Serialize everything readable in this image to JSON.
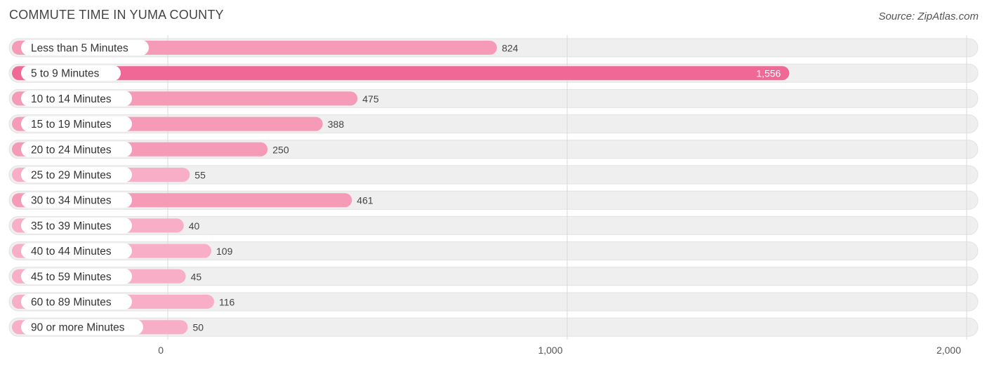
{
  "title": "COMMUTE TIME IN YUMA COUNTY",
  "source": "Source: ZipAtlas.com",
  "colors": {
    "highlight": "#f06895",
    "normal": "#f59bb8",
    "light": "#f7aec6",
    "track": "#efefef",
    "label_bg": "#ffffff"
  },
  "chart_data": {
    "type": "bar",
    "orientation": "horizontal",
    "title": "COMMUTE TIME IN YUMA COUNTY",
    "categories": [
      "Less than 5 Minutes",
      "5 to 9 Minutes",
      "10 to 14 Minutes",
      "15 to 19 Minutes",
      "20 to 24 Minutes",
      "25 to 29 Minutes",
      "30 to 34 Minutes",
      "35 to 39 Minutes",
      "40 to 44 Minutes",
      "45 to 59 Minutes",
      "60 to 89 Minutes",
      "90 or more Minutes"
    ],
    "values": [
      824,
      1556,
      475,
      388,
      250,
      55,
      461,
      40,
      109,
      45,
      116,
      50
    ],
    "value_labels": [
      "824",
      "1,556",
      "475",
      "388",
      "250",
      "55",
      "461",
      "40",
      "109",
      "45",
      "116",
      "50"
    ],
    "highlight_index": 1,
    "xlim": [
      0,
      2000
    ],
    "ticks": [
      0,
      1000,
      2000
    ],
    "tick_labels": [
      "0",
      "1,000",
      "2,000"
    ],
    "grid": true
  }
}
